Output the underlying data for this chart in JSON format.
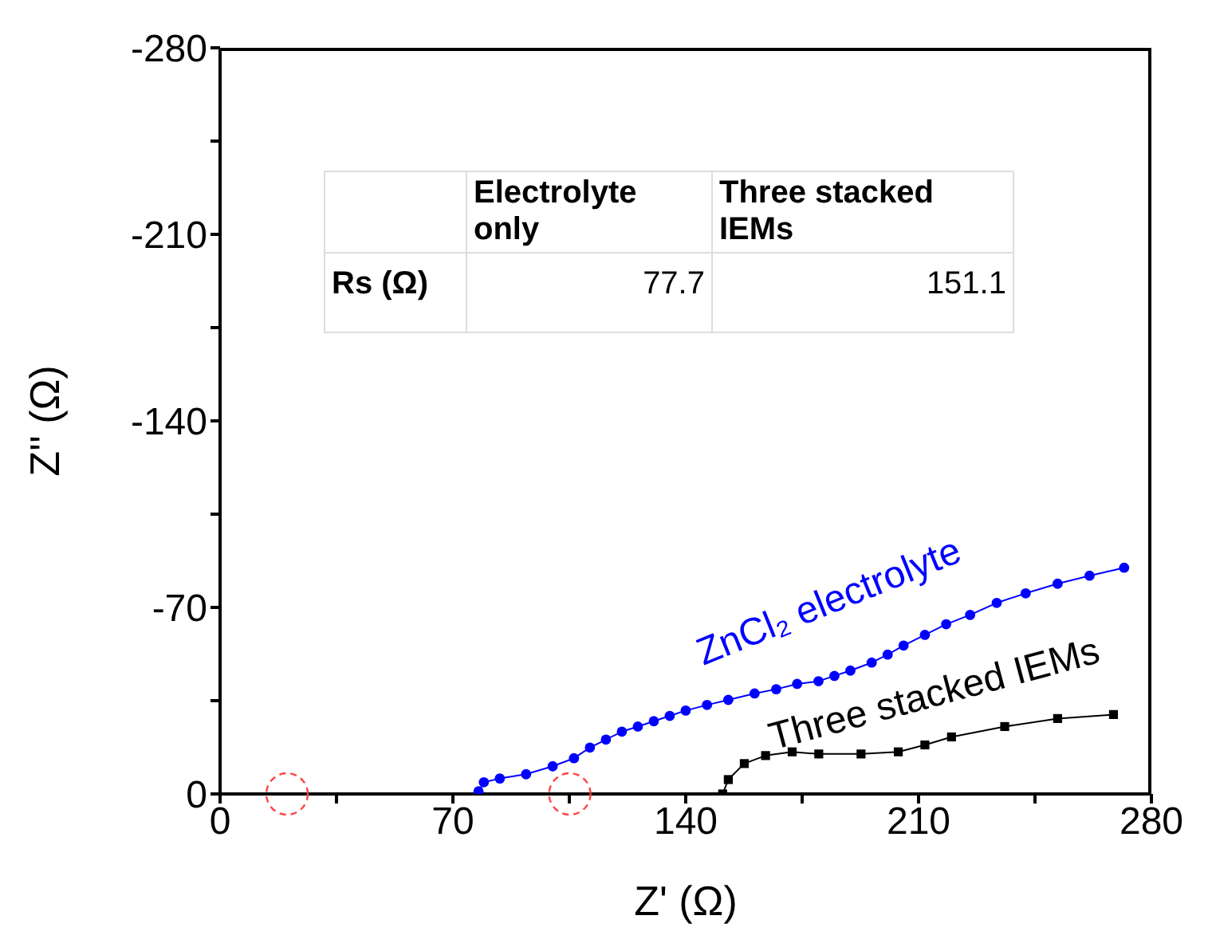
{
  "chart_data": {
    "type": "line",
    "xlabel": "Z' (Ω)",
    "ylabel": "Z'' (Ω)",
    "xlim": [
      0,
      280
    ],
    "xticks": [
      0,
      {
        "value": 35,
        "label": null
      },
      70,
      {
        "value": 105,
        "label": null
      },
      140,
      {
        "value": 175,
        "label": null
      },
      210,
      {
        "value": 245,
        "label": null
      },
      280
    ],
    "ylim": [
      0,
      -280
    ],
    "yticks": [
      0,
      {
        "value": -35,
        "label": null
      },
      -70,
      {
        "value": -105,
        "label": null
      },
      -140,
      {
        "value": -175,
        "label": null
      },
      -210,
      {
        "value": -245,
        "label": null
      },
      -280
    ],
    "series": [
      {
        "name": "ZnCl₂ electrolyte",
        "color": "#0000ff",
        "marker": "circle",
        "x": [
          77.7,
          79.3,
          84.1,
          92.0,
          100.0,
          106.4,
          111.2,
          116.0,
          120.8,
          125.6,
          130.4,
          135.2,
          140.0,
          146.4,
          152.8,
          160.7,
          167.2,
          173.5,
          179.9,
          184.7,
          189.5,
          195.9,
          200.7,
          205.5,
          211.9,
          218.3,
          225.5,
          233.5,
          242.2,
          251.8,
          261.4,
          271.8
        ],
        "values": [
          -1,
          -4.4,
          -5.8,
          -7.4,
          -10.4,
          -13.4,
          -17.4,
          -20.4,
          -23.4,
          -25.3,
          -27.3,
          -29.3,
          -31.3,
          -33.4,
          -35.3,
          -37.7,
          -39.3,
          -41.3,
          -42.3,
          -44.3,
          -46.3,
          -49.3,
          -52.3,
          -55.7,
          -59.7,
          -63.7,
          -67.2,
          -71.7,
          -75.3,
          -78.9,
          -81.9,
          -84.9
        ]
      },
      {
        "name": "Three stacked IEMs",
        "color": "#000000",
        "marker": "square",
        "x": [
          151.1,
          152.8,
          157.6,
          164.0,
          172.0,
          180.0,
          192.7,
          203.9,
          211.9,
          219.9,
          235.9,
          251.8,
          268.6
        ],
        "values": [
          0,
          -5.4,
          -11.4,
          -14.4,
          -15.8,
          -15.0,
          -15.0,
          -15.8,
          -18.4,
          -21.4,
          -25.3,
          -28.3,
          -29.8
        ]
      }
    ],
    "annotations": [
      "Electrolyte only",
      "Three stacked IEMs",
      "Rs (Ω)",
      "77.7",
      "151.1"
    ]
  }
}
